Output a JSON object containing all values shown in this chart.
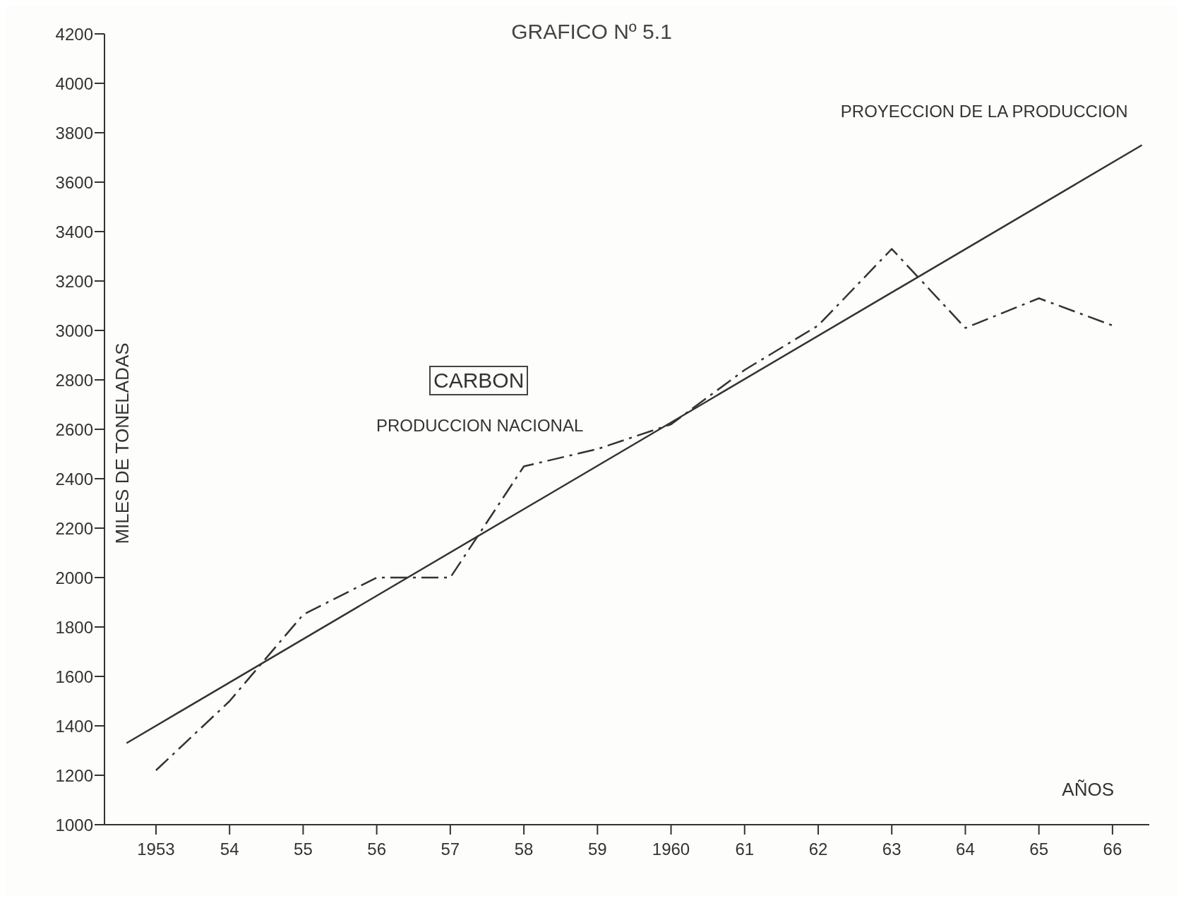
{
  "chart_data": {
    "type": "line",
    "title": "GRAFICO Nº 5.1",
    "xlabel": "AÑOS",
    "ylabel": "MILES DE TONELADAS",
    "annotations": [
      "CARBON"
    ],
    "xlim": [
      1952.3,
      1966.5
    ],
    "ylim": [
      1000,
      4200
    ],
    "xticks": [
      {
        "value": 1953,
        "label": "1953"
      },
      {
        "value": 1954,
        "label": "54"
      },
      {
        "value": 1955,
        "label": "55"
      },
      {
        "value": 1956,
        "label": "56"
      },
      {
        "value": 1957,
        "label": "57"
      },
      {
        "value": 1958,
        "label": "58"
      },
      {
        "value": 1959,
        "label": "59"
      },
      {
        "value": 1960,
        "label": "1960"
      },
      {
        "value": 1961,
        "label": "61"
      },
      {
        "value": 1962,
        "label": "62"
      },
      {
        "value": 1963,
        "label": "63"
      },
      {
        "value": 1964,
        "label": "64"
      },
      {
        "value": 1965,
        "label": "65"
      },
      {
        "value": 1966,
        "label": "66"
      }
    ],
    "yticks": [
      1000,
      1200,
      1400,
      1600,
      1800,
      2000,
      2200,
      2400,
      2600,
      2800,
      3000,
      3200,
      3400,
      3600,
      3800,
      4000,
      4200
    ],
    "marker": "none",
    "series": [
      {
        "name": "PRODUCCION NACIONAL",
        "color": "#333333",
        "line_style": "dashed",
        "x": [
          1953,
          1954,
          1955,
          1956,
          1957,
          1958,
          1959,
          1960,
          1961,
          1962,
          1963,
          1964,
          1965,
          1966
        ],
        "values": [
          1220,
          1500,
          1850,
          2000,
          2000,
          2450,
          2520,
          2620,
          2840,
          3020,
          3330,
          3010,
          3130,
          3020
        ]
      },
      {
        "name": "PROYECCION DE LA PRODUCCION",
        "color": "#333333",
        "line_style": "solid",
        "x": [
          1952.6,
          1966.4
        ],
        "values": [
          1330,
          3750
        ]
      }
    ]
  }
}
